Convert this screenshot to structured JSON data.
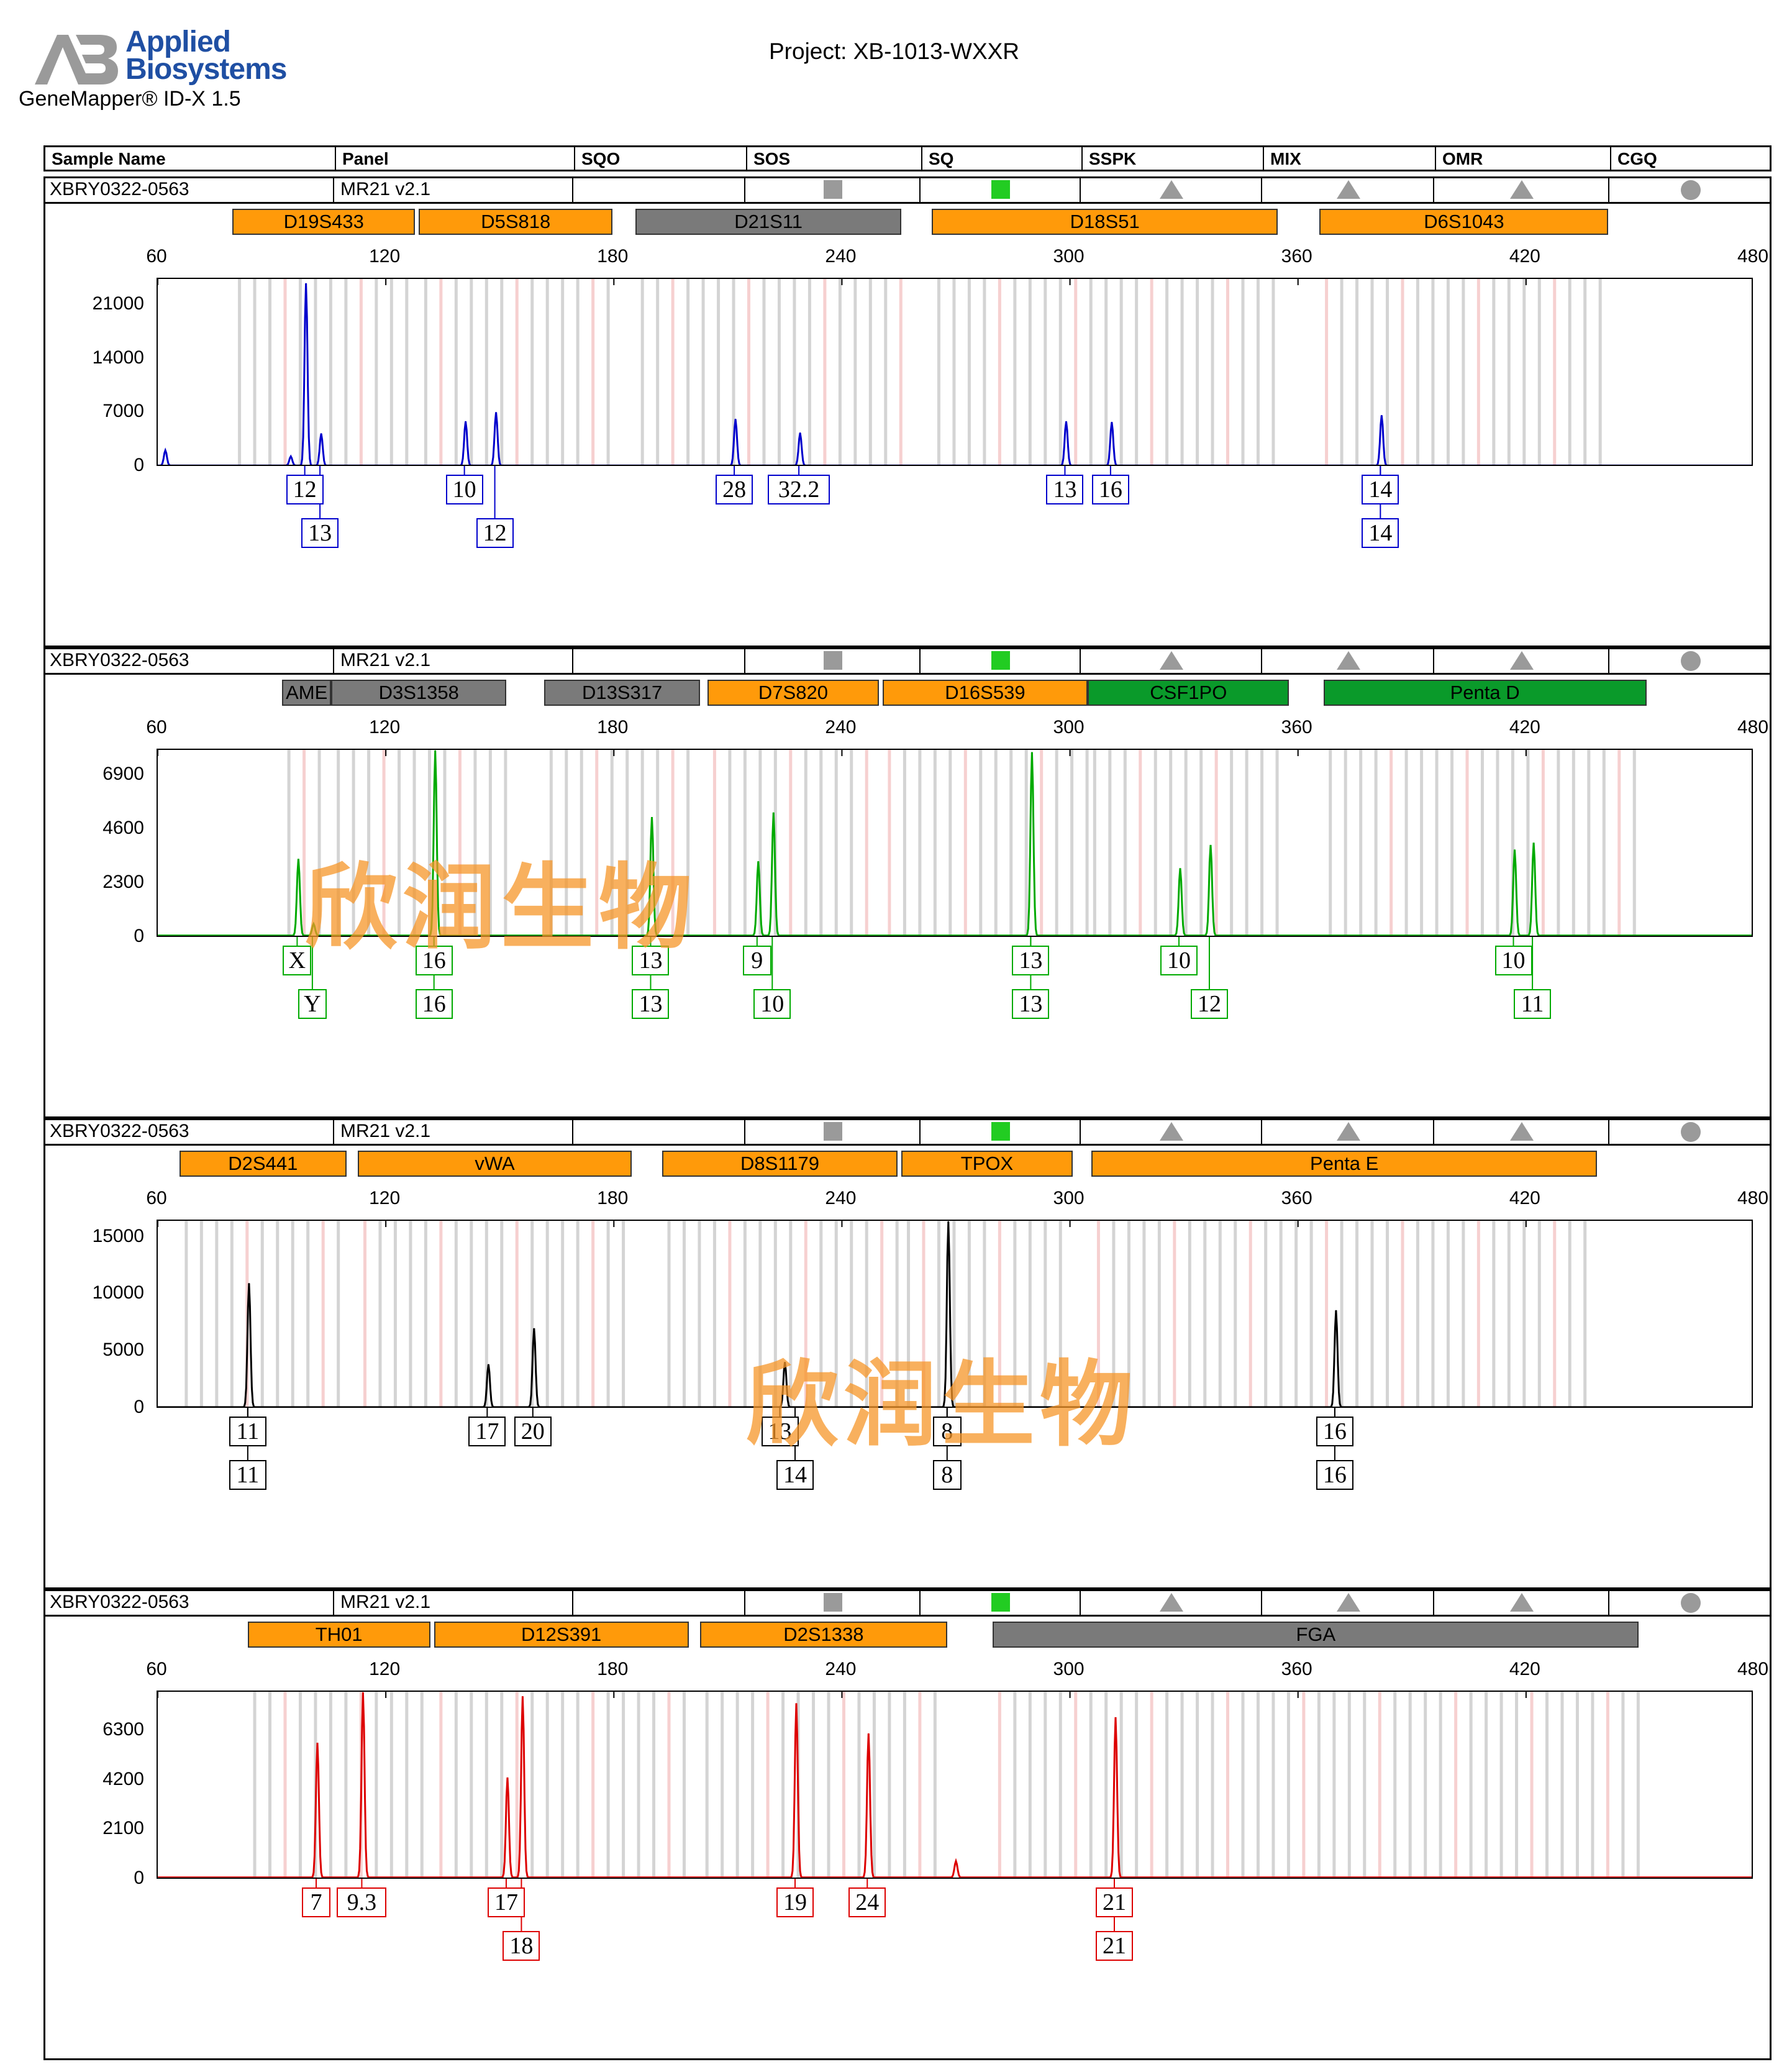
{
  "header": {
    "brand_line1": "Applied",
    "brand_line2": "Biosystems",
    "product": "GeneMapper® ID-X  1.5",
    "project": "Project: XB-1013-WXXR",
    "logo_color": "#1f4fa3"
  },
  "columns": [
    "Sample Name",
    "Panel",
    "SQO",
    "SOS",
    "SQ",
    "SSPK",
    "MIX",
    "OMR",
    "CGQ"
  ],
  "quality_flags": [
    {
      "name": "SOS",
      "shape": "square",
      "color": "#9a9a9a"
    },
    {
      "name": "SQ",
      "shape": "square",
      "color": "#22cc22"
    },
    {
      "name": "SSPK",
      "shape": "triangle",
      "color": "#9a9a9a"
    },
    {
      "name": "MIX",
      "shape": "triangle",
      "color": "#9a9a9a"
    },
    {
      "name": "OMR",
      "shape": "triangle",
      "color": "#9a9a9a"
    },
    {
      "name": "CGQ",
      "shape": "circle",
      "color": "#9a9a9a"
    }
  ],
  "x_axis": {
    "min": 60,
    "max": 480,
    "ticks": [
      "60",
      "120",
      "180",
      "240",
      "300",
      "360",
      "420",
      "480"
    ]
  },
  "watermark": "欣润生物",
  "panels": [
    {
      "sample": "XBRY0322-0563",
      "panel": "MR21  v2.1",
      "color": "#0000cc",
      "ymax": 24500,
      "yticks": [
        {
          "v": 0,
          "t": "0"
        },
        {
          "v": 7000,
          "t": "7000"
        },
        {
          "v": 14000,
          "t": "14000"
        },
        {
          "v": 21000,
          "t": "21000"
        }
      ],
      "markers": [
        {
          "name": "D19S433",
          "from": 80,
          "to": 128,
          "color": "orange"
        },
        {
          "name": "D5S818",
          "from": 129,
          "to": 180,
          "color": "orange"
        },
        {
          "name": "D21S11",
          "from": 186,
          "to": 256,
          "color": "gray"
        },
        {
          "name": "D18S51",
          "from": 264,
          "to": 355,
          "color": "orange"
        },
        {
          "name": "D6S1043",
          "from": 366,
          "to": 442,
          "color": "orange"
        }
      ],
      "peaks": [
        [
          62,
          2000
        ],
        [
          95,
          1200
        ],
        [
          99,
          24000
        ],
        [
          103,
          4200
        ],
        [
          141,
          5800
        ],
        [
          149,
          7000
        ],
        [
          212,
          6100
        ],
        [
          229,
          4300
        ],
        [
          299,
          5800
        ],
        [
          311,
          5700
        ],
        [
          382,
          6600
        ]
      ],
      "alleles": [
        {
          "label": "12",
          "pos": 99,
          "row": 0
        },
        {
          "label": "13",
          "pos": 103,
          "row": 1
        },
        {
          "label": "10",
          "pos": 141,
          "row": 0
        },
        {
          "label": "12",
          "pos": 149,
          "row": 1
        },
        {
          "label": "28",
          "pos": 212,
          "row": 0
        },
        {
          "label": "32.2",
          "pos": 229,
          "row": 0
        },
        {
          "label": "13",
          "pos": 299,
          "row": 0
        },
        {
          "label": "16",
          "pos": 311,
          "row": 0
        },
        {
          "label": "14",
          "pos": 382,
          "row": 0
        },
        {
          "label": "14",
          "pos": 382,
          "row": 1
        }
      ]
    },
    {
      "sample": "XBRY0322-0563",
      "panel": "MR21  v2.1",
      "color": "#00aa00",
      "ymax": 8000,
      "yticks": [
        {
          "v": 0,
          "t": "0"
        },
        {
          "v": 2300,
          "t": "2300"
        },
        {
          "v": 4600,
          "t": "4600"
        },
        {
          "v": 6900,
          "t": "6900"
        }
      ],
      "markers": [
        {
          "name": "AME",
          "from": 93,
          "to": 106,
          "color": "gray"
        },
        {
          "name": "D3S1358",
          "from": 106,
          "to": 152,
          "color": "gray"
        },
        {
          "name": "D13S317",
          "from": 162,
          "to": 203,
          "color": "gray"
        },
        {
          "name": "D7S820",
          "from": 205,
          "to": 250,
          "color": "orange"
        },
        {
          "name": "D16S539",
          "from": 251,
          "to": 305,
          "color": "orange"
        },
        {
          "name": "CSF1PO",
          "from": 305,
          "to": 358,
          "color": "green"
        },
        {
          "name": "Penta D",
          "from": 367,
          "to": 452,
          "color": "green"
        }
      ],
      "peaks": [
        [
          97,
          3300
        ],
        [
          101,
          500
        ],
        [
          133,
          8000
        ],
        [
          190,
          5100
        ],
        [
          218,
          3200
        ],
        [
          222,
          5300
        ],
        [
          290,
          7900
        ],
        [
          329,
          2900
        ],
        [
          337,
          3900
        ],
        [
          417,
          3700
        ],
        [
          422,
          4000
        ]
      ],
      "alleles": [
        {
          "label": "X",
          "pos": 97,
          "row": 0
        },
        {
          "label": "Y",
          "pos": 101,
          "row": 1
        },
        {
          "label": "16",
          "pos": 133,
          "row": 0
        },
        {
          "label": "16",
          "pos": 133,
          "row": 1
        },
        {
          "label": "13",
          "pos": 190,
          "row": 0
        },
        {
          "label": "13",
          "pos": 190,
          "row": 1
        },
        {
          "label": "9",
          "pos": 218,
          "row": 0
        },
        {
          "label": "10",
          "pos": 222,
          "row": 1
        },
        {
          "label": "13",
          "pos": 290,
          "row": 0
        },
        {
          "label": "13",
          "pos": 290,
          "row": 1
        },
        {
          "label": "10",
          "pos": 329,
          "row": 0
        },
        {
          "label": "12",
          "pos": 337,
          "row": 1
        },
        {
          "label": "10",
          "pos": 417,
          "row": 0
        },
        {
          "label": "11",
          "pos": 422,
          "row": 1
        }
      ]
    },
    {
      "sample": "XBRY0322-0563",
      "panel": "MR21  v2.1",
      "color": "#000000",
      "ymax": 16500,
      "yticks": [
        {
          "v": 0,
          "t": "0"
        },
        {
          "v": 5000,
          "t": "5000"
        },
        {
          "v": 10000,
          "t": "10000"
        },
        {
          "v": 15000,
          "t": "15000"
        }
      ],
      "markers": [
        {
          "name": "D2S441",
          "from": 66,
          "to": 110,
          "color": "orange"
        },
        {
          "name": "vWA",
          "from": 113,
          "to": 185,
          "color": "orange"
        },
        {
          "name": "D8S1179",
          "from": 193,
          "to": 255,
          "color": "orange"
        },
        {
          "name": "TPOX",
          "from": 256,
          "to": 301,
          "color": "orange"
        },
        {
          "name": "Penta E",
          "from": 306,
          "to": 439,
          "color": "orange"
        }
      ],
      "peaks": [
        [
          84,
          11000
        ],
        [
          147,
          3800
        ],
        [
          159,
          7000
        ],
        [
          225,
          4000
        ],
        [
          268,
          16500
        ],
        [
          370,
          8600
        ]
      ],
      "alleles": [
        {
          "label": "11",
          "pos": 84,
          "row": 0
        },
        {
          "label": "11",
          "pos": 84,
          "row": 1
        },
        {
          "label": "17",
          "pos": 147,
          "row": 0
        },
        {
          "label": "20",
          "pos": 159,
          "row": 0
        },
        {
          "label": "13",
          "pos": 224,
          "row": 0
        },
        {
          "label": "14",
          "pos": 228,
          "row": 1
        },
        {
          "label": "8",
          "pos": 268,
          "row": 0
        },
        {
          "label": "8",
          "pos": 268,
          "row": 1
        },
        {
          "label": "16",
          "pos": 370,
          "row": 0
        },
        {
          "label": "16",
          "pos": 370,
          "row": 1
        }
      ]
    },
    {
      "sample": "XBRY0322-0563",
      "panel": "MR21  v2.1",
      "color": "#dd0000",
      "ymax": 8000,
      "yticks": [
        {
          "v": 0,
          "t": "0"
        },
        {
          "v": 2100,
          "t": "2100"
        },
        {
          "v": 4200,
          "t": "4200"
        },
        {
          "v": 6300,
          "t": "6300"
        }
      ],
      "markers": [
        {
          "name": "TH01",
          "from": 84,
          "to": 132,
          "color": "orange"
        },
        {
          "name": "D12S391",
          "from": 133,
          "to": 200,
          "color": "orange"
        },
        {
          "name": "D2S1338",
          "from": 203,
          "to": 268,
          "color": "orange"
        },
        {
          "name": "FGA",
          "from": 280,
          "to": 450,
          "color": "gray"
        }
      ],
      "peaks": [
        [
          102,
          5800
        ],
        [
          114,
          8000
        ],
        [
          152,
          4300
        ],
        [
          156,
          7800
        ],
        [
          228,
          7500
        ],
        [
          247,
          6200
        ],
        [
          270,
          700
        ],
        [
          312,
          6900
        ]
      ],
      "alleles": [
        {
          "label": "7",
          "pos": 102,
          "row": 0
        },
        {
          "label": "9.3",
          "pos": 114,
          "row": 0
        },
        {
          "label": "17",
          "pos": 152,
          "row": 0
        },
        {
          "label": "18",
          "pos": 156,
          "row": 1
        },
        {
          "label": "19",
          "pos": 228,
          "row": 0
        },
        {
          "label": "24",
          "pos": 247,
          "row": 0
        },
        {
          "label": "21",
          "pos": 312,
          "row": 0
        },
        {
          "label": "21",
          "pos": 312,
          "row": 1
        }
      ]
    }
  ]
}
